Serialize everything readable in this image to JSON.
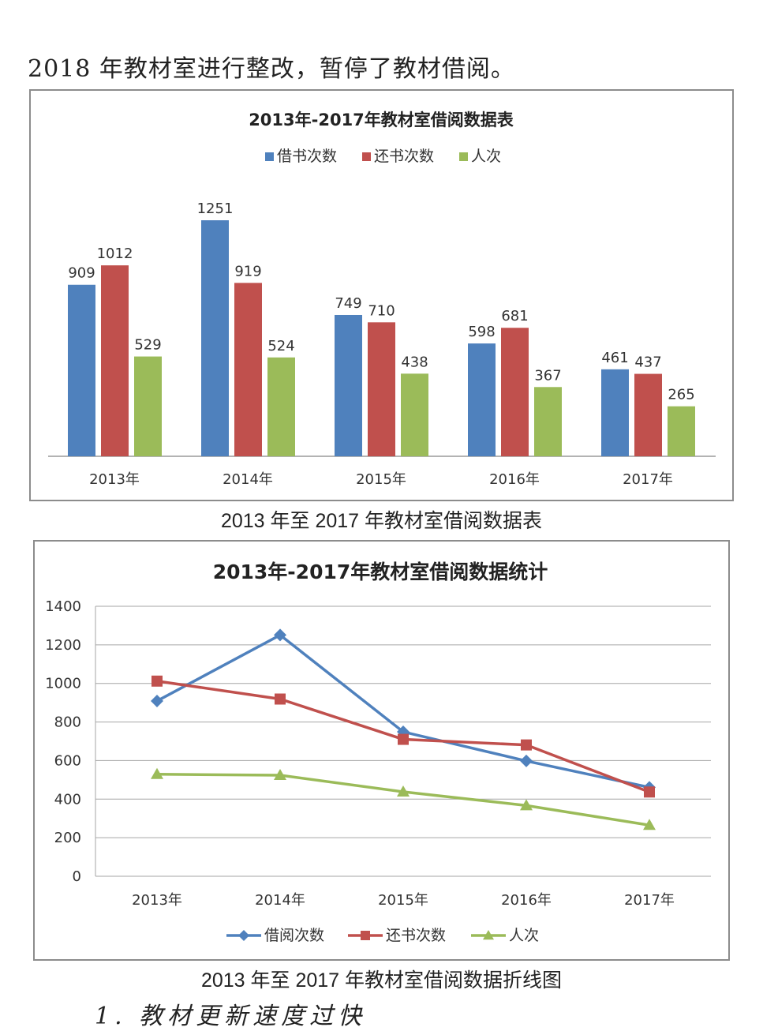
{
  "intro_text": "2018 年教材室进行整改，暂停了教材借阅。",
  "bar_caption": "2013 年至 2017 年教材室借阅数据表",
  "line_caption": "2013 年至 2017 年教材室借阅数据折线图",
  "bottom_text": "1.  教材更新速度过快",
  "colors": {
    "blue": "#4f81bd",
    "red": "#c0504d",
    "green": "#9bbb59"
  },
  "chart_data": [
    {
      "type": "bar",
      "title": "2013年-2017年教材室借阅数据表",
      "categories": [
        "2013年",
        "2014年",
        "2015年",
        "2016年",
        "2017年"
      ],
      "series": [
        {
          "name": "借书次数",
          "values": [
            909,
            1251,
            749,
            598,
            461
          ]
        },
        {
          "name": "还书次数",
          "values": [
            1012,
            919,
            710,
            681,
            437
          ]
        },
        {
          "name": "人次",
          "values": [
            529,
            524,
            438,
            367,
            265
          ]
        }
      ],
      "legend": "top",
      "data_labels": true,
      "grid": false
    },
    {
      "type": "line",
      "title": "2013年-2017年教材室借阅数据统计",
      "categories": [
        "2013年",
        "2014年",
        "2015年",
        "2016年",
        "2017年"
      ],
      "series": [
        {
          "name": "借阅次数",
          "values": [
            909,
            1251,
            749,
            598,
            461
          ]
        },
        {
          "name": "还书次数",
          "values": [
            1012,
            919,
            710,
            681,
            437
          ]
        },
        {
          "name": "人次",
          "values": [
            529,
            524,
            438,
            367,
            265
          ]
        }
      ],
      "ylim": [
        0,
        1400
      ],
      "yticks": [
        0,
        200,
        400,
        600,
        800,
        1000,
        1200,
        1400
      ],
      "legend": "bottom",
      "grid": true
    }
  ]
}
